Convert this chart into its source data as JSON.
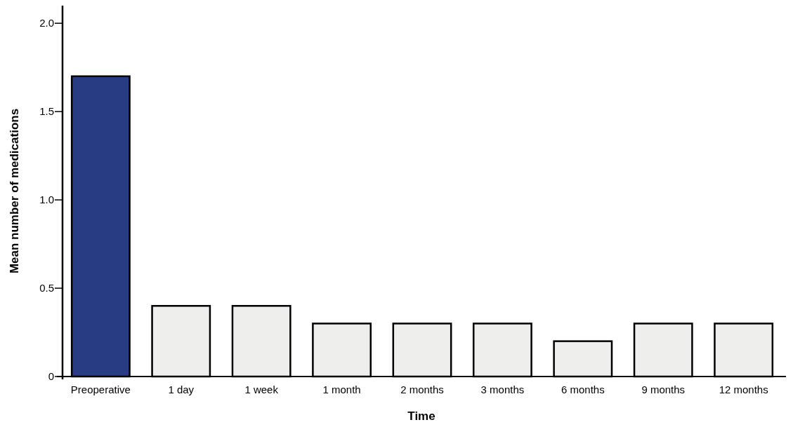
{
  "chart_data": {
    "type": "bar",
    "xlabel": "Time",
    "ylabel": "Mean number of medications",
    "categories": [
      "Preoperative",
      "1 day",
      "1 week",
      "1 month",
      "2 months",
      "3 months",
      "6 months",
      "9 months",
      "12 months"
    ],
    "values": [
      1.7,
      0.4,
      0.4,
      0.3,
      0.3,
      0.3,
      0.2,
      0.3,
      0.3
    ],
    "colors": [
      "#273c82",
      "#eeefed",
      "#eeefed",
      "#eeefed",
      "#eeefed",
      "#eeefed",
      "#eeefed",
      "#eeefed",
      "#eeefed"
    ],
    "ylim": [
      0,
      2.1
    ],
    "yticks": [
      0,
      {
        "value": 0.5,
        "label": "0.5"
      },
      {
        "value": 1,
        "label": "1.0"
      },
      {
        "value": 1.5,
        "label": "1.5"
      },
      {
        "value": 2,
        "label": "2.0"
      }
    ],
    "grid": false
  }
}
